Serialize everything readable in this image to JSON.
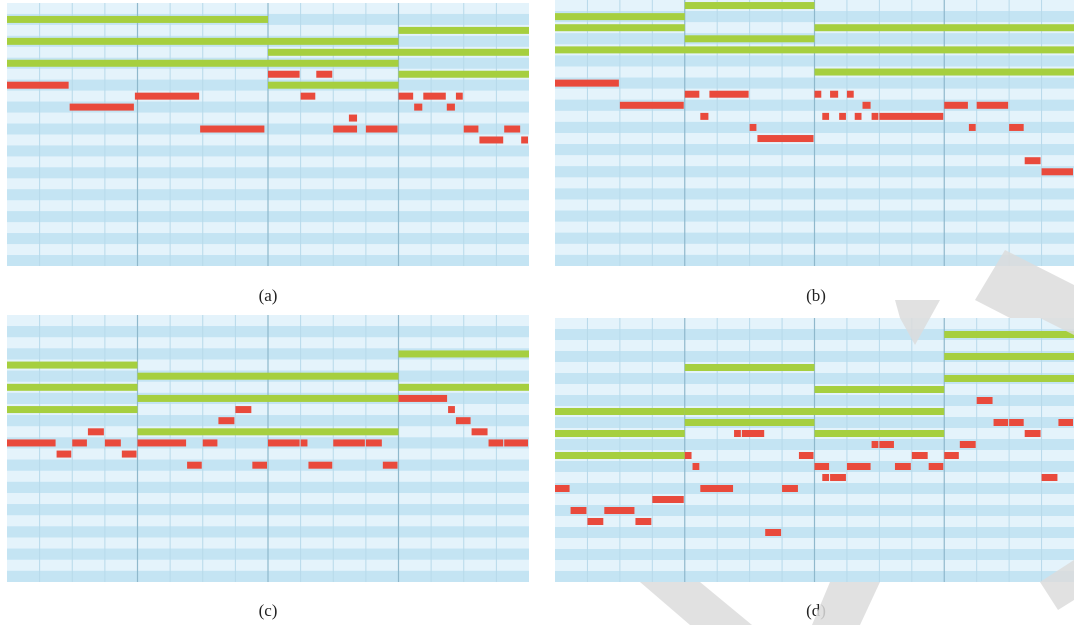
{
  "colors": {
    "stripe_light": "#e4f3fb",
    "stripe_dark": "#c4e4f3",
    "row_line": "#d6ecf7",
    "beat_line": "#b7d9ea",
    "bar_line": "#8fb8cc",
    "chord_note": "#a6cf3f",
    "melody_note": "#e94a3c",
    "watermark": "#dcdcdc"
  },
  "panels": [
    {
      "caption": "(a)",
      "chords": [
        [
          0,
          2.0,
          1
        ],
        [
          0,
          3.0,
          3
        ],
        [
          2,
          3.0,
          4
        ],
        [
          3,
          4.0,
          2
        ],
        [
          3,
          4.0,
          4
        ],
        [
          0,
          3.0,
          5
        ],
        [
          3,
          4.0,
          6
        ],
        [
          2,
          3.0,
          7
        ]
      ],
      "melody": [
        [
          0.0,
          0.48,
          7
        ],
        [
          0.48,
          0.98,
          9
        ],
        [
          0.98,
          1.48,
          8
        ],
        [
          1.48,
          1.98,
          11
        ],
        [
          2.0,
          2.25,
          6
        ],
        [
          2.37,
          2.5,
          6
        ],
        [
          2.25,
          2.37,
          8
        ],
        [
          2.5,
          2.69,
          11
        ],
        [
          2.62,
          2.69,
          10
        ],
        [
          2.75,
          3.0,
          11
        ],
        [
          3.0,
          3.12,
          8
        ],
        [
          3.19,
          3.37,
          8
        ],
        [
          3.12,
          3.19,
          9
        ],
        [
          3.37,
          3.44,
          9
        ],
        [
          3.44,
          3.5,
          8
        ],
        [
          3.5,
          3.62,
          11
        ],
        [
          3.62,
          3.81,
          12
        ],
        [
          3.81,
          3.94,
          11
        ],
        [
          3.94,
          4.0,
          12
        ]
      ]
    },
    {
      "caption": "(b)",
      "chords": [
        [
          0,
          1.0,
          1
        ],
        [
          1,
          2.0,
          0
        ],
        [
          0,
          1.0,
          2
        ],
        [
          1,
          2.0,
          3
        ],
        [
          2,
          4.0,
          2
        ],
        [
          0,
          2.0,
          4
        ],
        [
          2,
          4.0,
          4
        ],
        [
          2,
          4.0,
          6
        ]
      ],
      "melody": [
        [
          0.0,
          0.5,
          7
        ],
        [
          0.5,
          1.0,
          9
        ],
        [
          1.0,
          1.12,
          8
        ],
        [
          1.19,
          1.5,
          8
        ],
        [
          1.12,
          1.19,
          10
        ],
        [
          1.5,
          1.56,
          11
        ],
        [
          1.56,
          2.0,
          12
        ],
        [
          2.0,
          2.06,
          8
        ],
        [
          2.12,
          2.19,
          8
        ],
        [
          2.25,
          2.31,
          8
        ],
        [
          2.06,
          2.12,
          10
        ],
        [
          2.19,
          2.25,
          10
        ],
        [
          2.31,
          2.37,
          10
        ],
        [
          2.44,
          2.5,
          10
        ],
        [
          2.37,
          2.44,
          9
        ],
        [
          2.5,
          3.0,
          10
        ],
        [
          3.0,
          3.19,
          9
        ],
        [
          3.25,
          3.5,
          9
        ],
        [
          3.19,
          3.25,
          11
        ],
        [
          3.5,
          3.62,
          11
        ],
        [
          3.62,
          3.75,
          14
        ],
        [
          3.75,
          4.0,
          15
        ]
      ]
    },
    {
      "caption": "(c)",
      "chords": [
        [
          0,
          1.0,
          4
        ],
        [
          3,
          4.0,
          3
        ],
        [
          1,
          2.0,
          5
        ],
        [
          2,
          3.0,
          5
        ],
        [
          0,
          1.0,
          6
        ],
        [
          3,
          4.0,
          6
        ],
        [
          1,
          2.0,
          7
        ],
        [
          2,
          3.0,
          7
        ],
        [
          0,
          1.0,
          8
        ],
        [
          1,
          3.0,
          10
        ]
      ],
      "melody": [
        [
          0.0,
          0.38,
          11
        ],
        [
          0.38,
          0.5,
          12
        ],
        [
          0.5,
          0.62,
          11
        ],
        [
          0.62,
          0.75,
          10
        ],
        [
          0.75,
          0.88,
          11
        ],
        [
          0.88,
          1.0,
          12
        ],
        [
          1.0,
          1.38,
          11
        ],
        [
          1.38,
          1.5,
          13
        ],
        [
          1.5,
          1.62,
          11
        ],
        [
          1.62,
          1.75,
          9
        ],
        [
          1.75,
          1.88,
          8
        ],
        [
          1.88,
          2.0,
          13
        ],
        [
          2.0,
          2.25,
          11
        ],
        [
          2.25,
          2.31,
          11
        ],
        [
          2.31,
          2.5,
          13
        ],
        [
          2.5,
          2.75,
          11
        ],
        [
          2.75,
          2.88,
          11
        ],
        [
          2.88,
          3.0,
          13
        ],
        [
          3.0,
          3.38,
          7
        ],
        [
          3.38,
          3.44,
          8
        ],
        [
          3.44,
          3.56,
          9
        ],
        [
          3.56,
          3.69,
          10
        ],
        [
          3.69,
          3.81,
          11
        ],
        [
          3.81,
          4.0,
          11
        ]
      ]
    },
    {
      "caption": "(d)",
      "chords": [
        [
          3,
          4.0,
          1
        ],
        [
          3,
          4.0,
          3
        ],
        [
          1,
          2.0,
          4
        ],
        [
          3,
          4.0,
          5
        ],
        [
          2,
          3.0,
          6
        ],
        [
          0,
          1.0,
          8
        ],
        [
          1,
          2.0,
          8
        ],
        [
          2,
          3.0,
          8
        ],
        [
          1,
          2.0,
          9
        ],
        [
          0,
          1.0,
          10
        ],
        [
          2,
          3.0,
          10
        ],
        [
          0,
          1.0,
          12
        ]
      ],
      "melody": [
        [
          0.0,
          0.12,
          15
        ],
        [
          0.12,
          0.25,
          17
        ],
        [
          0.25,
          0.38,
          18
        ],
        [
          0.38,
          0.62,
          17
        ],
        [
          0.62,
          0.75,
          18
        ],
        [
          0.75,
          1.0,
          16
        ],
        [
          1.0,
          1.06,
          12
        ],
        [
          1.06,
          1.12,
          13
        ],
        [
          1.12,
          1.38,
          15
        ],
        [
          1.38,
          1.44,
          10
        ],
        [
          1.44,
          1.62,
          10
        ],
        [
          1.62,
          1.75,
          19
        ],
        [
          1.75,
          1.88,
          15
        ],
        [
          1.88,
          2.0,
          12
        ],
        [
          2.0,
          2.12,
          13
        ],
        [
          2.06,
          2.12,
          14
        ],
        [
          2.12,
          2.25,
          14
        ],
        [
          2.25,
          2.44,
          13
        ],
        [
          2.44,
          2.5,
          11
        ],
        [
          2.5,
          2.62,
          11
        ],
        [
          2.62,
          2.75,
          13
        ],
        [
          2.75,
          2.88,
          12
        ],
        [
          2.88,
          3.0,
          13
        ],
        [
          3.0,
          3.12,
          12
        ],
        [
          3.12,
          3.25,
          11
        ],
        [
          3.25,
          3.38,
          7
        ],
        [
          3.38,
          3.5,
          9
        ],
        [
          3.5,
          3.62,
          9
        ],
        [
          3.62,
          3.75,
          10
        ],
        [
          3.75,
          3.88,
          14
        ],
        [
          3.88,
          4.0,
          9
        ]
      ]
    }
  ]
}
